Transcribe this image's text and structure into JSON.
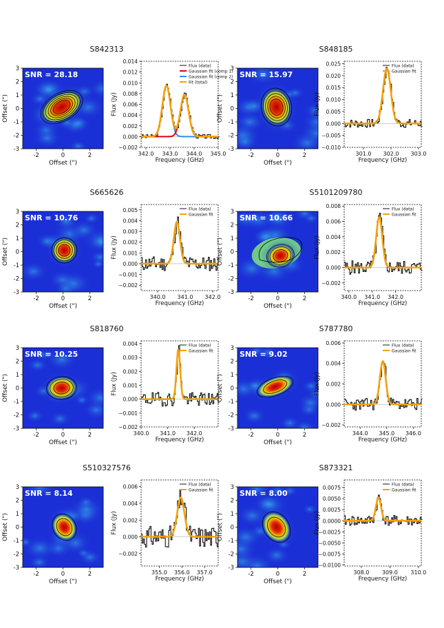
{
  "figure": {
    "map_axis": {
      "xlabel": "Offset (\")",
      "ylabel": "Offset (\")",
      "ticks": [
        -3,
        -2,
        -1,
        0,
        1,
        2,
        3
      ],
      "range": [
        -3,
        3
      ]
    },
    "spec_ylabel": "Flux (Jy)",
    "spec_xlabel": "Frequency (GHz)"
  },
  "colors": {
    "data": "#111111",
    "fit": "#f4a10a",
    "comp1": "#e2000e",
    "comp2": "#2f8fe8",
    "map_bg": "#1b2fd6"
  },
  "chart_data": [
    {
      "source": "S842313",
      "snr": "SNR = 28.18",
      "type": "line",
      "map": {
        "shape": "elongated",
        "angle": -30,
        "rx": 0.9,
        "ry": 0.55,
        "cx": -0.1,
        "cy": 0.1,
        "levels": 6
      },
      "xlim": [
        341.8,
        345.0
      ],
      "ylim": [
        -0.002,
        0.014
      ],
      "xticks": [
        342.0,
        343.0,
        344.0,
        345.0
      ],
      "xticklabels": [
        "342.0",
        "343.0",
        "344.0",
        "345.0"
      ],
      "yticks": [
        -0.002,
        0.0,
        0.002,
        0.004,
        0.006,
        0.008,
        0.01,
        0.012,
        0.014
      ],
      "yticklabels": [
        "−0.002",
        "0.000",
        "0.002",
        "0.004",
        "0.006",
        "0.008",
        "0.010",
        "0.012",
        "0.014"
      ],
      "legend": [
        "Flux (data)",
        "Gaussian fit (comp 1)",
        "Gaussian fit (comp 2)",
        "Fit (total)"
      ],
      "gauss": [
        {
          "amp": 0.0095,
          "mu": 342.85,
          "sigma": 0.17,
          "role": "comp2"
        },
        {
          "amp": 0.0078,
          "mu": 343.6,
          "sigma": 0.17,
          "role": "comp1"
        }
      ],
      "noise": 0.0004,
      "seed": 3
    },
    {
      "source": "S848185",
      "snr": "SNR = 15.97",
      "type": "line",
      "map": {
        "shape": "round",
        "angle": -10,
        "rx": 0.6,
        "ry": 0.75,
        "cx": -0.1,
        "cy": 0.1,
        "levels": 5
      },
      "xlim": [
        300.3,
        303.1
      ],
      "ylim": [
        -0.01,
        0.026
      ],
      "xticks": [
        301.0,
        302.0,
        303.0
      ],
      "xticklabels": [
        "301.0",
        "302.0",
        "303.0"
      ],
      "yticks": [
        -0.01,
        -0.005,
        0.0,
        0.005,
        0.01,
        0.015,
        0.02,
        0.025
      ],
      "yticklabels": [
        "−0.010",
        "−0.005",
        "0.000",
        "0.005",
        "0.010",
        "0.015",
        "0.020",
        "0.025"
      ],
      "legend": [
        "Flux (data)",
        "Gaussian fit"
      ],
      "gauss": [
        {
          "amp": 0.023,
          "mu": 301.85,
          "sigma": 0.14,
          "role": "fit"
        }
      ],
      "noise": 0.0018,
      "seed": 7
    },
    {
      "source": "S665626",
      "snr": "SNR = 10.76",
      "type": "line",
      "map": {
        "shape": "round",
        "angle": 0,
        "rx": 0.5,
        "ry": 0.5,
        "cx": 0.1,
        "cy": 0.1,
        "levels": 4
      },
      "xlim": [
        339.4,
        342.2
      ],
      "ylim": [
        -0.0025,
        0.0055
      ],
      "xticks": [
        340.0,
        341.0,
        342.0
      ],
      "xticklabels": [
        "340.0",
        "341.0",
        "342.0"
      ],
      "yticks": [
        -0.002,
        -0.001,
        0.0,
        0.001,
        0.002,
        0.003,
        0.004,
        0.005
      ],
      "yticklabels": [
        "−0.002",
        "−0.001",
        "0.000",
        "0.001",
        "0.002",
        "0.003",
        "0.004",
        "0.005"
      ],
      "legend": [
        "Flux (data)",
        "Gaussian fit"
      ],
      "gauss": [
        {
          "amp": 0.0039,
          "mu": 340.7,
          "sigma": 0.11,
          "role": "fit"
        }
      ],
      "noise": 0.0007,
      "seed": 11
    },
    {
      "source": "S5101209780",
      "snr": "SNR = 10.66",
      "type": "line",
      "map": {
        "shape": "extended",
        "angle": -15,
        "rx": 0.55,
        "ry": 0.45,
        "cx": 0.2,
        "cy": -0.3,
        "levels": 3
      },
      "xlim": [
        339.8,
        343.1
      ],
      "ylim": [
        -0.003,
        0.0082
      ],
      "xticks": [
        340.0,
        341.0,
        342.0
      ],
      "xticklabels": [
        "340.0",
        "341.0",
        "342.0"
      ],
      "yticks": [
        -0.002,
        0.0,
        0.002,
        0.004,
        0.006,
        0.008
      ],
      "yticklabels": [
        "−0.002",
        "0.000",
        "0.002",
        "0.004",
        "0.006",
        "0.008"
      ],
      "legend": [
        "Flux (data)",
        "Gaussian fit"
      ],
      "gauss": [
        {
          "amp": 0.0066,
          "mu": 341.3,
          "sigma": 0.13,
          "role": "fit"
        }
      ],
      "noise": 0.0009,
      "seed": 5
    },
    {
      "source": "S818760",
      "snr": "SNR = 10.25",
      "type": "line",
      "map": {
        "shape": "round",
        "angle": -5,
        "rx": 0.6,
        "ry": 0.45,
        "cx": -0.1,
        "cy": 0.0,
        "levels": 3
      },
      "xlim": [
        340.0,
        342.9
      ],
      "ylim": [
        -0.002,
        0.0042
      ],
      "xticks": [
        340.0,
        341.0,
        342.0
      ],
      "xticklabels": [
        "340.0",
        "341.0",
        "342.0"
      ],
      "yticks": [
        -0.002,
        -0.001,
        0.0,
        0.001,
        0.002,
        0.003,
        0.004
      ],
      "yticklabels": [
        "−0.002",
        "−0.001",
        "0.000",
        "0.001",
        "0.002",
        "0.003",
        "0.004"
      ],
      "legend": [
        "Flux (data)",
        "Gaussian fit"
      ],
      "gauss": [
        {
          "amp": 0.0036,
          "mu": 341.4,
          "sigma": 0.07,
          "role": "fit"
        }
      ],
      "noise": 0.0005,
      "seed": 19
    },
    {
      "source": "S787780",
      "snr": "SNR = 9.02",
      "type": "line",
      "map": {
        "shape": "elongated",
        "angle": -20,
        "rx": 0.75,
        "ry": 0.35,
        "cx": -0.2,
        "cy": 0.1,
        "levels": 2
      },
      "xlim": [
        343.4,
        346.3
      ],
      "ylim": [
        -0.0022,
        0.0062
      ],
      "xticks": [
        344.0,
        345.0,
        346.0
      ],
      "xticklabels": [
        "344.0",
        "345.0",
        "346.0"
      ],
      "yticks": [
        -0.002,
        0.0,
        0.002,
        0.004,
        0.006
      ],
      "yticklabels": [
        "−0.002",
        "0.000",
        "0.002",
        "0.004",
        "0.006"
      ],
      "legend": [
        "Flux (data)",
        "Gaussian fit"
      ],
      "gauss": [
        {
          "amp": 0.0042,
          "mu": 344.85,
          "sigma": 0.11,
          "role": "fit"
        }
      ],
      "noise": 0.0006,
      "seed": 23
    },
    {
      "source": "S510327576",
      "snr": "SNR = 8.14",
      "type": "line",
      "map": {
        "shape": "round",
        "angle": -30,
        "rx": 0.45,
        "ry": 0.55,
        "cx": 0.1,
        "cy": 0.0,
        "levels": 2
      },
      "xlim": [
        354.2,
        357.6
      ],
      "ylim": [
        -0.0035,
        0.0068
      ],
      "xticks": [
        355.0,
        356.0,
        357.0
      ],
      "xticklabels": [
        "355.0",
        "356.0",
        "357.0"
      ],
      "yticks": [
        -0.002,
        0.0,
        0.002,
        0.004,
        0.006
      ],
      "yticklabels": [
        "−0.002",
        "0.000",
        "0.002",
        "0.004",
        "0.006"
      ],
      "legend": [
        "Flux (data)",
        "Gaussian fit"
      ],
      "gauss": [
        {
          "amp": 0.0047,
          "mu": 355.95,
          "sigma": 0.16,
          "role": "fit"
        }
      ],
      "noise": 0.0013,
      "seed": 31
    },
    {
      "source": "S873321",
      "snr": "SNR = 8.00",
      "type": "line",
      "map": {
        "shape": "round",
        "angle": -35,
        "rx": 0.5,
        "ry": 0.65,
        "cx": -0.1,
        "cy": 0.0,
        "levels": 2
      },
      "xlim": [
        307.4,
        310.1
      ],
      "ylim": [
        -0.0102,
        0.0092
      ],
      "xticks": [
        308.0,
        309.0,
        310.0
      ],
      "xticklabels": [
        "308.0",
        "309.0",
        "310.0"
      ],
      "yticks": [
        -0.01,
        -0.0075,
        -0.005,
        -0.0025,
        0.0,
        0.0025,
        0.005,
        0.0075
      ],
      "yticklabels": [
        "−0.0100",
        "−0.0075",
        "−0.0050",
        "−0.0025",
        "0.0000",
        "0.0025",
        "0.0050",
        "0.0075"
      ],
      "legend": [
        "Flux (data)",
        "Gaussian fit"
      ],
      "gauss": [
        {
          "amp": 0.0052,
          "mu": 308.6,
          "sigma": 0.09,
          "role": "fit"
        }
      ],
      "noise": 0.0012,
      "seed": 41
    }
  ]
}
